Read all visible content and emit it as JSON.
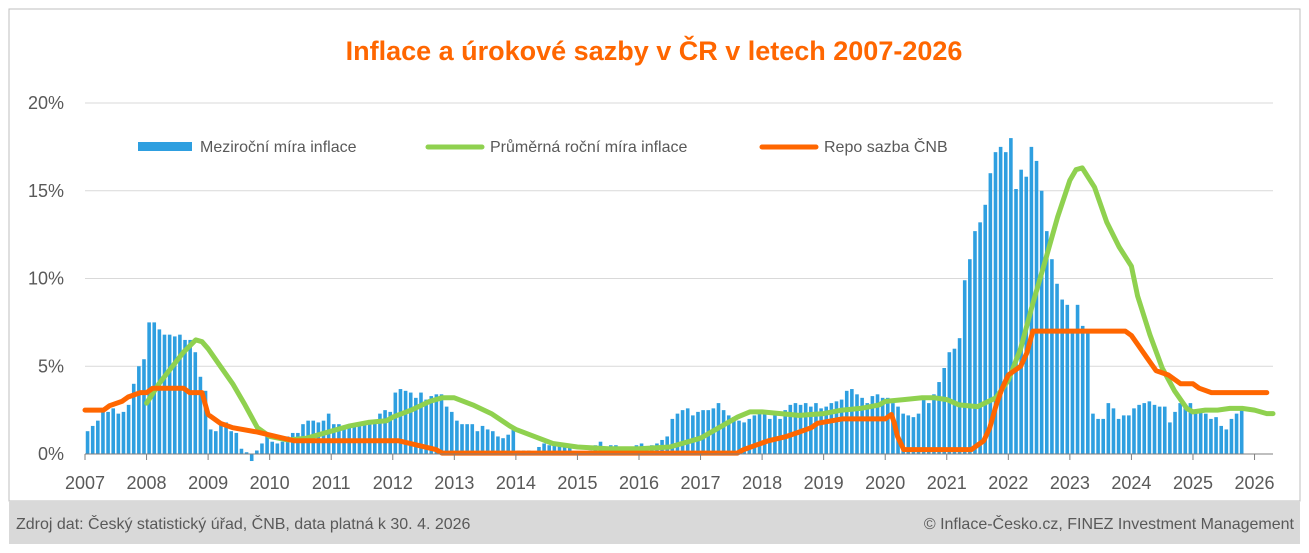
{
  "chart_data": {
    "type": "bar+line",
    "title": "Inflace a úrokové sazby v ČR v letech 2007-2026",
    "x_tick_labels": [
      "2007",
      "2008",
      "2009",
      "2010",
      "2011",
      "2012",
      "2013",
      "2014",
      "2015",
      "2016",
      "2017",
      "2018",
      "2019",
      "2020",
      "2021",
      "2022",
      "2023",
      "2024",
      "2025",
      "2026"
    ],
    "y_tick_labels": [
      "0%",
      "5%",
      "10%",
      "15%",
      "20%"
    ],
    "ylim": [
      0,
      20
    ],
    "xlim": [
      2007.0,
      2026.3
    ],
    "grid": "horizontal",
    "legend_position": "top-left",
    "series": [
      {
        "name": "Meziroční míra inflace",
        "kind": "bar",
        "color": "#2E9FE0",
        "start": "2007-01",
        "values": [
          1.3,
          1.6,
          1.9,
          2.5,
          2.4,
          2.6,
          2.3,
          2.4,
          2.8,
          4.0,
          5.0,
          5.4,
          7.5,
          7.5,
          7.1,
          6.8,
          6.8,
          6.7,
          6.8,
          6.5,
          6.5,
          5.8,
          4.4,
          3.6,
          1.4,
          1.3,
          1.7,
          1.8,
          1.3,
          1.2,
          0.3,
          0.1,
          -0.4,
          0.2,
          0.6,
          1.0,
          0.7,
          0.6,
          0.7,
          1.0,
          1.2,
          1.2,
          1.7,
          1.9,
          1.9,
          1.8,
          1.9,
          2.3,
          1.7,
          1.7,
          1.6,
          1.6,
          1.7,
          1.8,
          1.7,
          1.8,
          1.9,
          2.3,
          2.5,
          2.4,
          3.5,
          3.7,
          3.6,
          3.5,
          3.2,
          3.5,
          3.1,
          3.3,
          3.4,
          3.4,
          2.7,
          2.4,
          1.9,
          1.7,
          1.7,
          1.7,
          1.3,
          1.6,
          1.4,
          1.3,
          1.0,
          0.9,
          1.1,
          1.4,
          0.2,
          0.2,
          0.2,
          0.1,
          0.4,
          0.6,
          0.5,
          0.6,
          0.6,
          0.4,
          0.5,
          0.1,
          0.1,
          0.1,
          0.2,
          0.5,
          0.7,
          0.4,
          0.5,
          0.5,
          0.4,
          0.2,
          0.4,
          0.5,
          0.6,
          0.3,
          0.5,
          0.6,
          0.8,
          1.0,
          2.0,
          2.3,
          2.5,
          2.6,
          2.2,
          2.4,
          2.5,
          2.5,
          2.6,
          2.9,
          2.5,
          2.2,
          2.1,
          1.9,
          1.8,
          2.0,
          2.2,
          2.5,
          2.3,
          2.0,
          2.2,
          2.0,
          2.5,
          2.8,
          2.9,
          2.8,
          2.9,
          2.7,
          2.9,
          2.6,
          2.7,
          2.9,
          3.0,
          3.1,
          3.6,
          3.7,
          3.4,
          3.2,
          2.9,
          3.3,
          3.4,
          3.2,
          3.2,
          2.9,
          2.7,
          2.3,
          2.2,
          2.1,
          2.3,
          3.1,
          2.9,
          3.4,
          4.1,
          4.9,
          5.8,
          6.0,
          6.6,
          9.9,
          11.1,
          12.7,
          13.2,
          14.2,
          16.0,
          17.2,
          17.5,
          17.2,
          18.0,
          15.1,
          16.2,
          15.8,
          17.5,
          16.7,
          15.0,
          12.7,
          11.1,
          9.7,
          8.8,
          8.5,
          6.9,
          8.5,
          7.3,
          6.9,
          2.3,
          2.0,
          2.0,
          2.9,
          2.6,
          2.0,
          2.2,
          2.2,
          2.6,
          2.8,
          2.9,
          3.0,
          2.8,
          2.7,
          2.7,
          1.8,
          2.4,
          2.9,
          2.8,
          2.9,
          2.5,
          2.4,
          2.3,
          2.0,
          2.1,
          1.6,
          1.4,
          2.0,
          2.3,
          2.5
        ]
      },
      {
        "name": "Průměrná roční míra inflace",
        "kind": "line",
        "color": "#8FD14F",
        "points": [
          [
            2008.0,
            2.9
          ],
          [
            2008.2,
            4.0
          ],
          [
            2008.4,
            4.9
          ],
          [
            2008.6,
            5.8
          ],
          [
            2008.8,
            6.5
          ],
          [
            2008.9,
            6.4
          ],
          [
            2009.0,
            6.0
          ],
          [
            2009.2,
            5.0
          ],
          [
            2009.4,
            4.0
          ],
          [
            2009.6,
            2.8
          ],
          [
            2009.8,
            1.5
          ],
          [
            2010.0,
            1.0
          ],
          [
            2010.3,
            0.8
          ],
          [
            2010.6,
            0.9
          ],
          [
            2010.9,
            1.2
          ],
          [
            2011.0,
            1.3
          ],
          [
            2011.3,
            1.6
          ],
          [
            2011.6,
            1.8
          ],
          [
            2011.9,
            1.9
          ],
          [
            2012.0,
            2.1
          ],
          [
            2012.3,
            2.5
          ],
          [
            2012.6,
            3.0
          ],
          [
            2012.8,
            3.2
          ],
          [
            2013.0,
            3.2
          ],
          [
            2013.3,
            2.8
          ],
          [
            2013.6,
            2.3
          ],
          [
            2013.9,
            1.6
          ],
          [
            2014.0,
            1.4
          ],
          [
            2014.3,
            1.0
          ],
          [
            2014.6,
            0.6
          ],
          [
            2015.0,
            0.4
          ],
          [
            2015.5,
            0.3
          ],
          [
            2016.0,
            0.3
          ],
          [
            2016.5,
            0.4
          ],
          [
            2017.0,
            0.9
          ],
          [
            2017.3,
            1.5
          ],
          [
            2017.6,
            2.1
          ],
          [
            2017.8,
            2.4
          ],
          [
            2018.0,
            2.4
          ],
          [
            2018.3,
            2.3
          ],
          [
            2018.6,
            2.2
          ],
          [
            2019.0,
            2.3
          ],
          [
            2019.3,
            2.5
          ],
          [
            2019.6,
            2.6
          ],
          [
            2019.9,
            2.8
          ],
          [
            2020.0,
            3.0
          ],
          [
            2020.3,
            3.1
          ],
          [
            2020.6,
            3.2
          ],
          [
            2020.8,
            3.2
          ],
          [
            2021.0,
            3.1
          ],
          [
            2021.2,
            2.8
          ],
          [
            2021.5,
            2.7
          ],
          [
            2021.8,
            3.2
          ],
          [
            2022.0,
            4.2
          ],
          [
            2022.2,
            6.0
          ],
          [
            2022.4,
            8.6
          ],
          [
            2022.6,
            11.0
          ],
          [
            2022.8,
            13.5
          ],
          [
            2023.0,
            15.6
          ],
          [
            2023.1,
            16.2
          ],
          [
            2023.2,
            16.3
          ],
          [
            2023.4,
            15.2
          ],
          [
            2023.6,
            13.2
          ],
          [
            2023.8,
            11.8
          ],
          [
            2024.0,
            10.7
          ],
          [
            2024.1,
            9.0
          ],
          [
            2024.3,
            6.8
          ],
          [
            2024.5,
            4.9
          ],
          [
            2024.7,
            3.6
          ],
          [
            2024.9,
            2.6
          ],
          [
            2025.0,
            2.4
          ],
          [
            2025.2,
            2.5
          ],
          [
            2025.4,
            2.5
          ],
          [
            2025.6,
            2.6
          ],
          [
            2025.8,
            2.6
          ],
          [
            2026.0,
            2.5
          ],
          [
            2026.2,
            2.3
          ],
          [
            2026.3,
            2.3
          ]
        ]
      },
      {
        "name": "Repo sazba ČNB",
        "kind": "step",
        "color": "#FF6600",
        "points": [
          [
            2007.0,
            2.5
          ],
          [
            2007.3,
            2.5
          ],
          [
            2007.4,
            2.75
          ],
          [
            2007.6,
            3.0
          ],
          [
            2007.7,
            3.25
          ],
          [
            2007.9,
            3.5
          ],
          [
            2008.0,
            3.5
          ],
          [
            2008.1,
            3.75
          ],
          [
            2008.6,
            3.75
          ],
          [
            2008.7,
            3.5
          ],
          [
            2008.9,
            3.5
          ],
          [
            2009.0,
            2.25
          ],
          [
            2009.1,
            2.0
          ],
          [
            2009.2,
            1.75
          ],
          [
            2009.4,
            1.5
          ],
          [
            2009.8,
            1.25
          ],
          [
            2010.1,
            1.0
          ],
          [
            2010.4,
            0.75
          ],
          [
            2012.1,
            0.75
          ],
          [
            2012.4,
            0.5
          ],
          [
            2012.7,
            0.25
          ],
          [
            2012.8,
            0.05
          ],
          [
            2017.6,
            0.05
          ],
          [
            2017.7,
            0.25
          ],
          [
            2017.9,
            0.5
          ],
          [
            2018.1,
            0.75
          ],
          [
            2018.4,
            1.0
          ],
          [
            2018.6,
            1.25
          ],
          [
            2018.8,
            1.5
          ],
          [
            2018.9,
            1.75
          ],
          [
            2019.3,
            2.0
          ],
          [
            2020.0,
            2.0
          ],
          [
            2020.1,
            2.25
          ],
          [
            2020.15,
            1.75
          ],
          [
            2020.2,
            1.0
          ],
          [
            2020.3,
            0.25
          ],
          [
            2021.4,
            0.25
          ],
          [
            2021.5,
            0.5
          ],
          [
            2021.6,
            0.75
          ],
          [
            2021.7,
            1.5
          ],
          [
            2021.8,
            2.75
          ],
          [
            2021.9,
            3.75
          ],
          [
            2022.0,
            4.5
          ],
          [
            2022.2,
            5.0
          ],
          [
            2022.3,
            5.75
          ],
          [
            2022.4,
            7.0
          ],
          [
            2023.9,
            7.0
          ],
          [
            2024.0,
            6.75
          ],
          [
            2024.1,
            6.25
          ],
          [
            2024.2,
            5.75
          ],
          [
            2024.3,
            5.25
          ],
          [
            2024.4,
            4.75
          ],
          [
            2024.6,
            4.5
          ],
          [
            2024.7,
            4.25
          ],
          [
            2024.8,
            4.0
          ],
          [
            2025.0,
            4.0
          ],
          [
            2025.1,
            3.75
          ],
          [
            2025.3,
            3.5
          ],
          [
            2026.2,
            3.5
          ]
        ]
      }
    ]
  },
  "footer": {
    "source": "Zdroj dat: Český statistický úřad, ČNB, data platná k 30. 4. 2026",
    "copyright": "© Inflace-Česko.cz, FINEZ Investment Management"
  },
  "colors": {
    "title": "#FF6600",
    "grid": "#D9D9D9",
    "axis": "#7F7F7F",
    "footer_bg": "#D9D9D9",
    "border": "#BFBFBF"
  }
}
